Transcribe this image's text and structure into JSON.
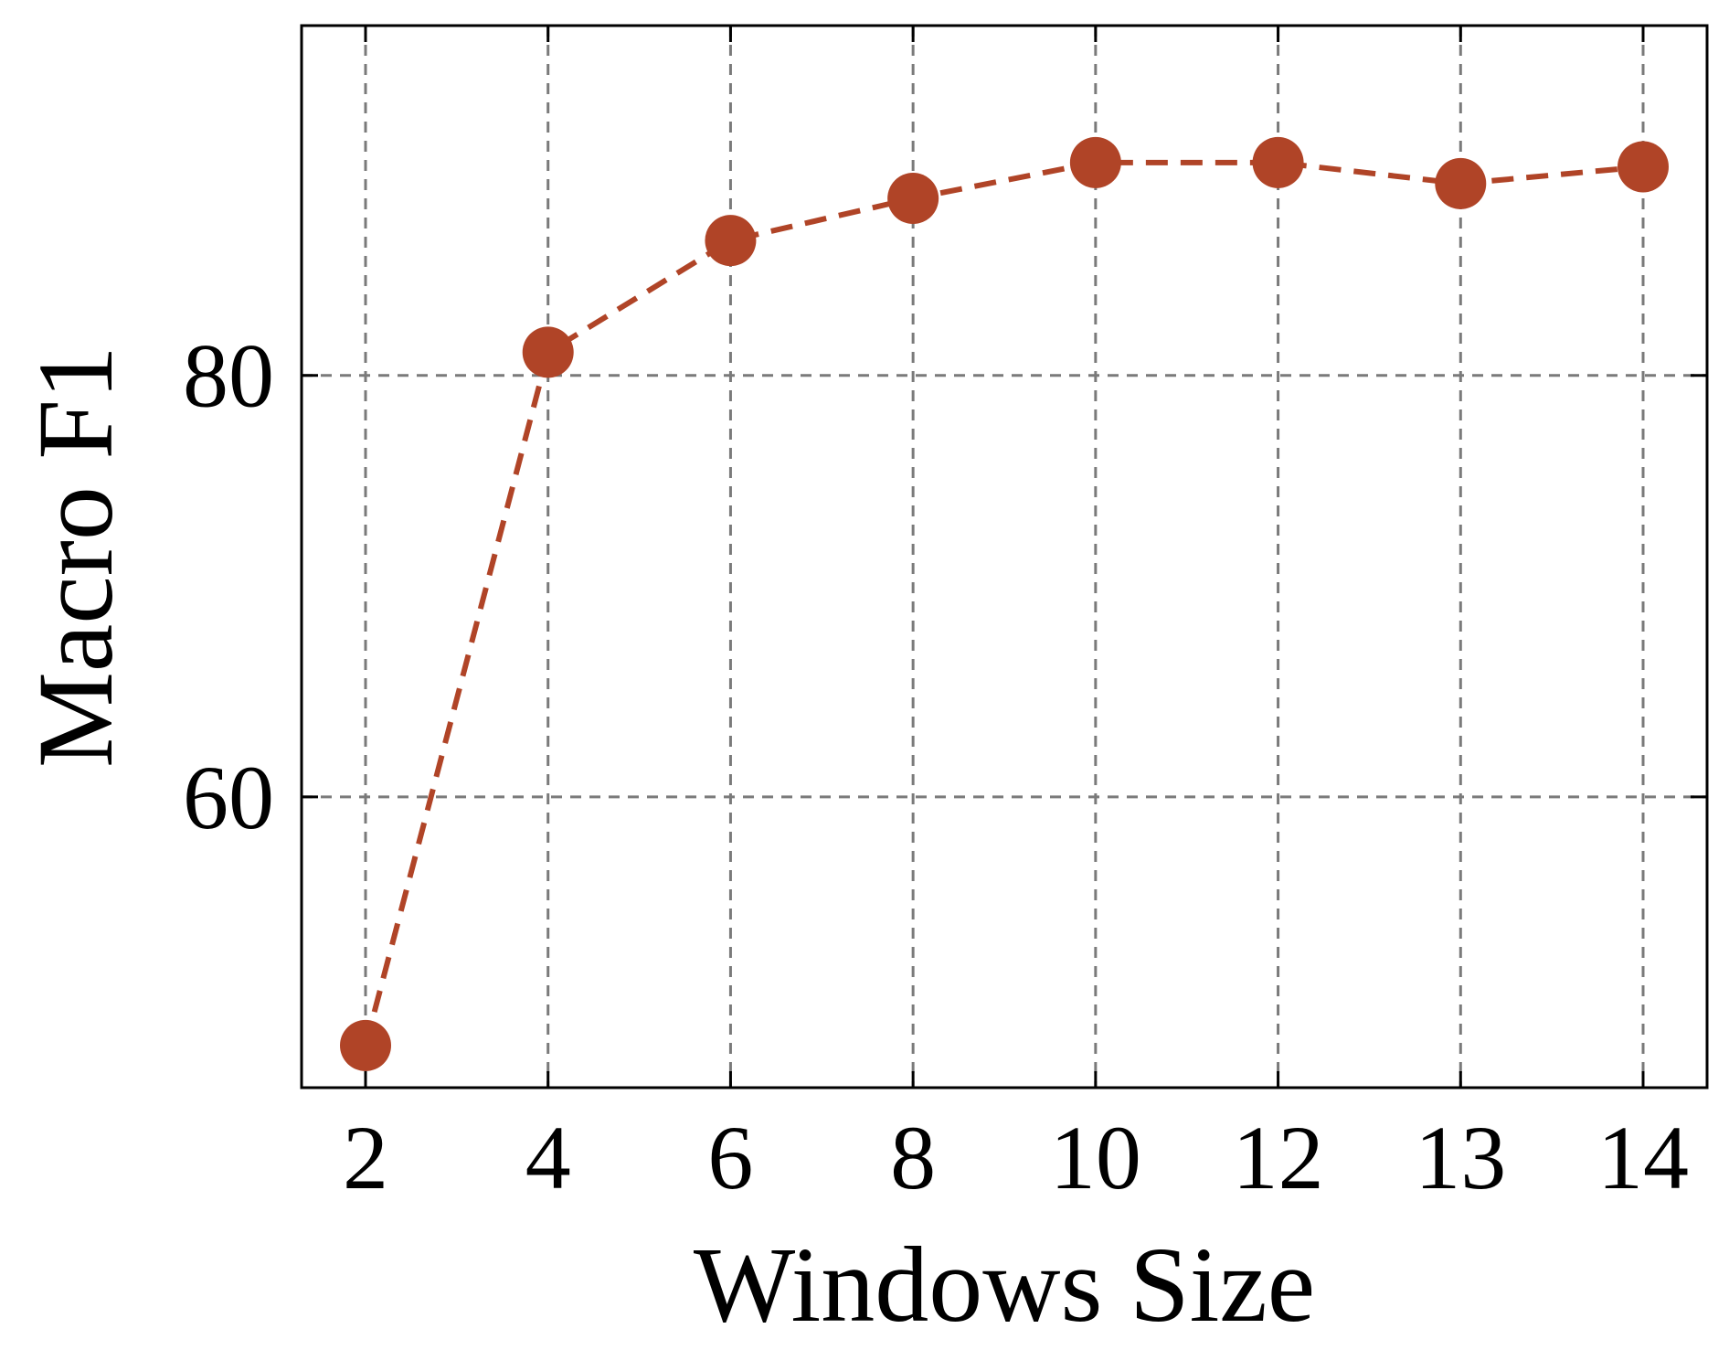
{
  "chart_data": {
    "type": "line",
    "title": "",
    "xlabel": "Windows Size",
    "ylabel": "Macro F1",
    "categories": [
      "2",
      "4",
      "6",
      "8",
      "10",
      "12",
      "13",
      "14"
    ],
    "series": [
      {
        "name": "",
        "values": [
          48.2,
          81.1,
          86.4,
          88.4,
          90.1,
          90.1,
          89.1,
          89.9
        ]
      }
    ],
    "yticks": [
      60,
      80
    ],
    "ylim": [
      46.2,
      96.6
    ],
    "grid": true,
    "legend": "none",
    "colors": {
      "series": "#b04427",
      "grid": "#7a7a7a",
      "axis": "#000000"
    }
  }
}
